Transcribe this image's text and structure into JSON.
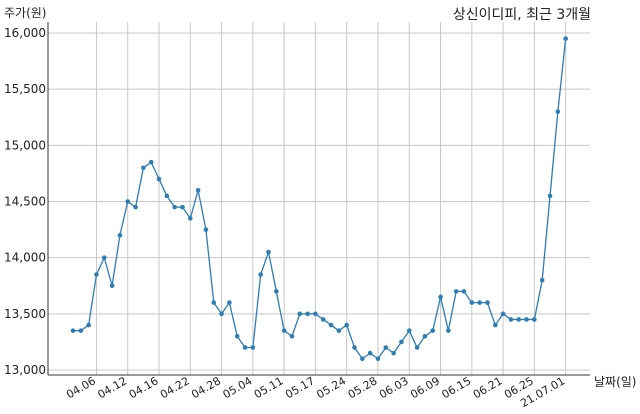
{
  "chart_data": {
    "type": "line",
    "title": "상신이디피, 최근 3개월",
    "ylabel": "주가(원)",
    "xlabel": "날짜(일)",
    "ylim": [
      13000,
      16000
    ],
    "yticks": [
      13000,
      13500,
      14000,
      14500,
      15000,
      15500,
      16000
    ],
    "ytick_labels": [
      "13,000",
      "13,500",
      "14,000",
      "14,500",
      "15,000",
      "15,500",
      "16,000"
    ],
    "xtick_labels": [
      "04.06",
      "04.12",
      "04.16",
      "04.22",
      "04.28",
      "05.04",
      "05.11",
      "05.17",
      "05.24",
      "05.28",
      "06.03",
      "06.09",
      "06.15",
      "06.21",
      "06.25",
      "21.07.01"
    ],
    "xtick_indices": [
      3,
      7,
      11,
      15,
      19,
      23,
      27,
      31,
      35,
      39,
      43,
      47,
      51,
      55,
      59,
      63
    ],
    "grid": true,
    "series": [
      {
        "color": "#2e7db4",
        "values": [
          13350,
          13350,
          13400,
          13850,
          14000,
          13750,
          14200,
          14500,
          14450,
          14800,
          14850,
          14700,
          14550,
          14450,
          14450,
          14350,
          14600,
          14250,
          13600,
          13500,
          13600,
          13300,
          13200,
          13200,
          13850,
          14050,
          13700,
          13350,
          13300,
          13500,
          13500,
          13500,
          13450,
          13400,
          13350,
          13400,
          13200,
          13100,
          13150,
          13100,
          13200,
          13150,
          13250,
          13350,
          13200,
          13300,
          13350,
          13650,
          13350,
          13700,
          13700,
          13600,
          13600,
          13600,
          13400,
          13500,
          13450,
          13450,
          13450,
          13450,
          13800,
          14550,
          15300,
          15950
        ]
      }
    ]
  }
}
